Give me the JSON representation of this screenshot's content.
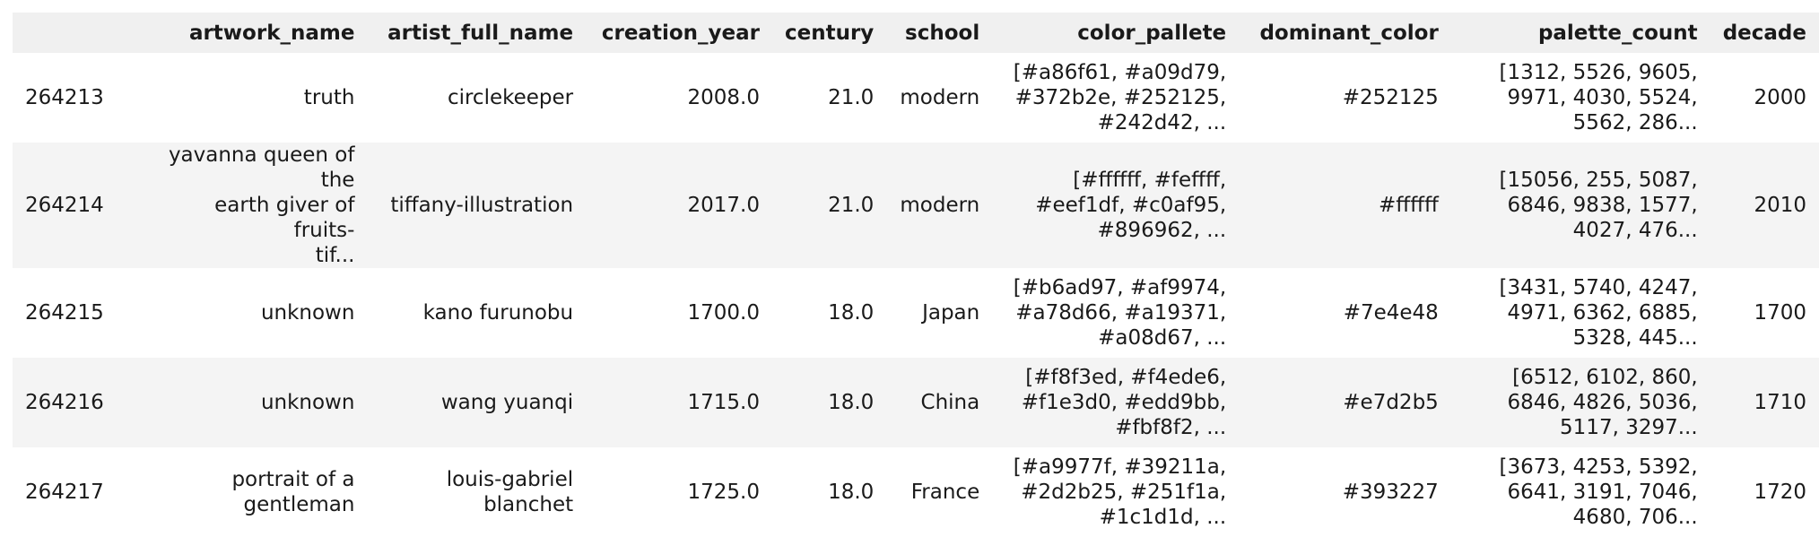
{
  "table": {
    "columns": [
      "",
      "artwork_name",
      "artist_full_name",
      "creation_year",
      "century",
      "school",
      "color_pallete",
      "dominant_color",
      "palette_count",
      "decade"
    ],
    "rows": [
      {
        "index": "264213",
        "artwork_name": "truth",
        "artist_full_name": "circlekeeper",
        "creation_year": "2008.0",
        "century": "21.0",
        "school": "modern",
        "color_pallete": "[#a86f61, #a09d79,\n#372b2e, #252125,\n#242d42, ...",
        "dominant_color": "#252125",
        "palette_count": "[1312, 5526, 9605,\n9971, 4030, 5524,\n5562, 286...",
        "decade": "2000"
      },
      {
        "index": "264214",
        "artwork_name": "yavanna queen of the\nearth giver of fruits-\ntif...",
        "artist_full_name": "tiffany-illustration",
        "creation_year": "2017.0",
        "century": "21.0",
        "school": "modern",
        "color_pallete": "[#ffffff, #feffff,\n#eef1df, #c0af95,\n#896962, ...",
        "dominant_color": "#ffffff",
        "palette_count": "[15056, 255, 5087,\n6846, 9838, 1577,\n4027, 476...",
        "decade": "2010"
      },
      {
        "index": "264215",
        "artwork_name": "unknown",
        "artist_full_name": "kano furunobu",
        "creation_year": "1700.0",
        "century": "18.0",
        "school": "Japan",
        "color_pallete": "[#b6ad97, #af9974,\n#a78d66, #a19371,\n#a08d67, ...",
        "dominant_color": "#7e4e48",
        "palette_count": "[3431, 5740, 4247,\n4971, 6362, 6885,\n5328, 445...",
        "decade": "1700"
      },
      {
        "index": "264216",
        "artwork_name": "unknown",
        "artist_full_name": "wang yuanqi",
        "creation_year": "1715.0",
        "century": "18.0",
        "school": "China",
        "color_pallete": "[#f8f3ed, #f4ede6,\n#f1e3d0, #edd9bb,\n#fbf8f2, ...",
        "dominant_color": "#e7d2b5",
        "palette_count": "[6512, 6102, 860,\n6846, 4826, 5036,\n5117, 3297...",
        "decade": "1710"
      },
      {
        "index": "264217",
        "artwork_name": "portrait of a\ngentleman",
        "artist_full_name": "louis-gabriel\nblanchet",
        "creation_year": "1725.0",
        "century": "18.0",
        "school": "France",
        "color_pallete": "[#a9977f, #39211a,\n#2d2b25, #251f1a,\n#1c1d1d, ...",
        "dominant_color": "#393227",
        "palette_count": "[3673, 4253, 5392,\n6641, 3191, 7046,\n4680, 706...",
        "decade": "1720"
      }
    ]
  }
}
